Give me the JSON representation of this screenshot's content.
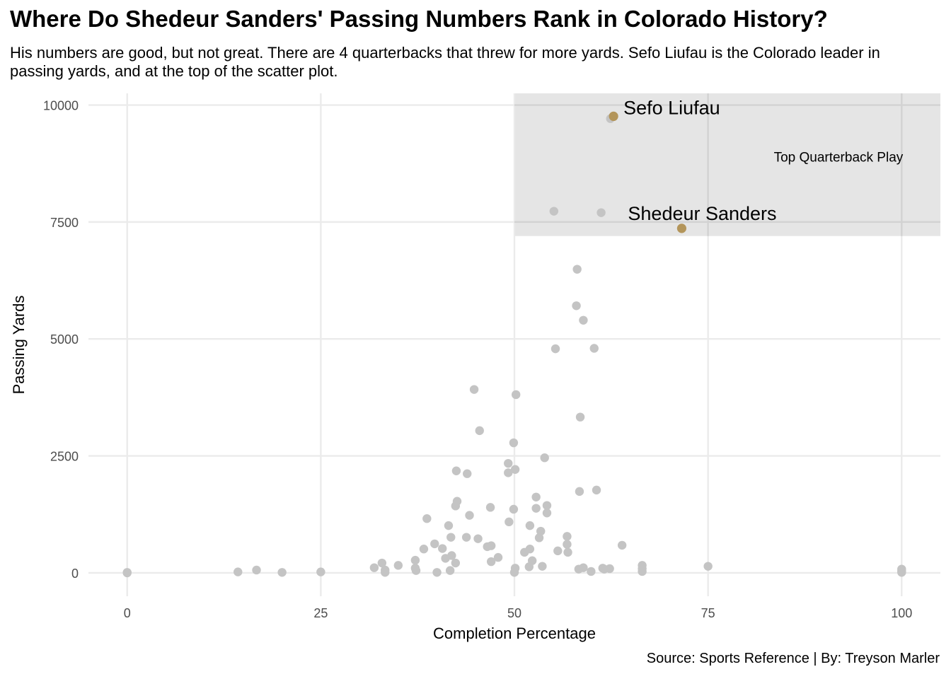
{
  "title": "Where Do Shedeur Sanders' Passing Numbers Rank in Colorado History?",
  "subtitle": "His numbers are good, but not great. There are 4 quarterbacks that threw for more yards. Sefo Liufau is the Colorado leader in passing yards, and at the top of the scatter plot.",
  "caption": "Source: Sports Reference | By: Treyson Marler",
  "colors": {
    "background_points": "#c4c4c4",
    "highlight_points": "#b3955a",
    "highlight_region": "#e5e5e5",
    "grid": "#ebebeb"
  },
  "chart_data": {
    "type": "scatter",
    "xlabel": "Completion Percentage",
    "ylabel": "Passing Yards",
    "xlim": [
      -5,
      105
    ],
    "ylim": [
      -500,
      10250
    ],
    "x_ticks": [
      "0",
      "25",
      "50",
      "75",
      "100"
    ],
    "y_ticks": [
      "0",
      "2500",
      "5000",
      "7500",
      "10000"
    ],
    "grid": true,
    "highlight_region": {
      "x": [
        50,
        105
      ],
      "y": [
        7200,
        10250
      ],
      "label": "Top Quarterback Play"
    },
    "region_label": "Top Quarterback Play",
    "highlights": [
      {
        "name": "Sefo Liufau",
        "x": 62.8,
        "y": 9760
      },
      {
        "name": "Shedeur Sanders",
        "x": 71.6,
        "y": 7364
      }
    ],
    "points": [
      [
        62.4,
        9710
      ],
      [
        55.1,
        7730
      ],
      [
        61.2,
        7700
      ],
      [
        58.1,
        6490
      ],
      [
        58.0,
        5710
      ],
      [
        58.9,
        5400
      ],
      [
        55.3,
        4790
      ],
      [
        60.3,
        4800
      ],
      [
        44.8,
        3920
      ],
      [
        50.2,
        3810
      ],
      [
        58.5,
        3330
      ],
      [
        45.5,
        3040
      ],
      [
        49.9,
        2780
      ],
      [
        53.9,
        2460
      ],
      [
        49.2,
        2340
      ],
      [
        42.5,
        2180
      ],
      [
        43.9,
        2120
      ],
      [
        50.1,
        2210
      ],
      [
        49.2,
        2140
      ],
      [
        60.6,
        1770
      ],
      [
        58.4,
        1740
      ],
      [
        52.8,
        1620
      ],
      [
        42.6,
        1530
      ],
      [
        42.4,
        1430
      ],
      [
        46.9,
        1400
      ],
      [
        49.9,
        1360
      ],
      [
        54.2,
        1440
      ],
      [
        52.8,
        1380
      ],
      [
        44.2,
        1230
      ],
      [
        54.2,
        1280
      ],
      [
        38.7,
        1160
      ],
      [
        49.3,
        1090
      ],
      [
        41.5,
        1010
      ],
      [
        52.0,
        1010
      ],
      [
        53.4,
        890
      ],
      [
        41.8,
        760
      ],
      [
        43.8,
        760
      ],
      [
        45.3,
        730
      ],
      [
        53.2,
        750
      ],
      [
        56.8,
        780
      ],
      [
        39.7,
        620
      ],
      [
        46.5,
        560
      ],
      [
        47.0,
        580
      ],
      [
        56.8,
        610
      ],
      [
        63.9,
        590
      ],
      [
        38.3,
        510
      ],
      [
        40.7,
        520
      ],
      [
        52.0,
        510
      ],
      [
        55.6,
        470
      ],
      [
        51.3,
        440
      ],
      [
        56.9,
        440
      ],
      [
        41.1,
        310
      ],
      [
        41.9,
        370
      ],
      [
        37.2,
        270
      ],
      [
        47.0,
        240
      ],
      [
        47.9,
        330
      ],
      [
        42.4,
        210
      ],
      [
        52.3,
        260
      ],
      [
        32.9,
        210
      ],
      [
        35.0,
        160
      ],
      [
        53.6,
        140
      ],
      [
        51.9,
        130
      ],
      [
        66.5,
        160
      ],
      [
        75.0,
        140
      ],
      [
        31.9,
        110
      ],
      [
        33.3,
        60
      ],
      [
        37.2,
        100
      ],
      [
        37.3,
        50
      ],
      [
        41.7,
        50
      ],
      [
        50.1,
        100
      ],
      [
        58.3,
        80
      ],
      [
        58.9,
        110
      ],
      [
        61.4,
        100
      ],
      [
        61.6,
        80
      ],
      [
        62.3,
        90
      ],
      [
        66.5,
        90
      ],
      [
        100.0,
        80
      ],
      [
        0,
        0
      ],
      [
        0,
        10
      ],
      [
        14.3,
        20
      ],
      [
        16.7,
        60
      ],
      [
        20.0,
        10
      ],
      [
        25.0,
        20
      ],
      [
        33.3,
        10
      ],
      [
        40.0,
        10
      ],
      [
        50.0,
        10
      ],
      [
        59.9,
        30
      ],
      [
        66.5,
        30
      ],
      [
        100.0,
        10
      ],
      [
        100.0,
        40
      ]
    ]
  }
}
